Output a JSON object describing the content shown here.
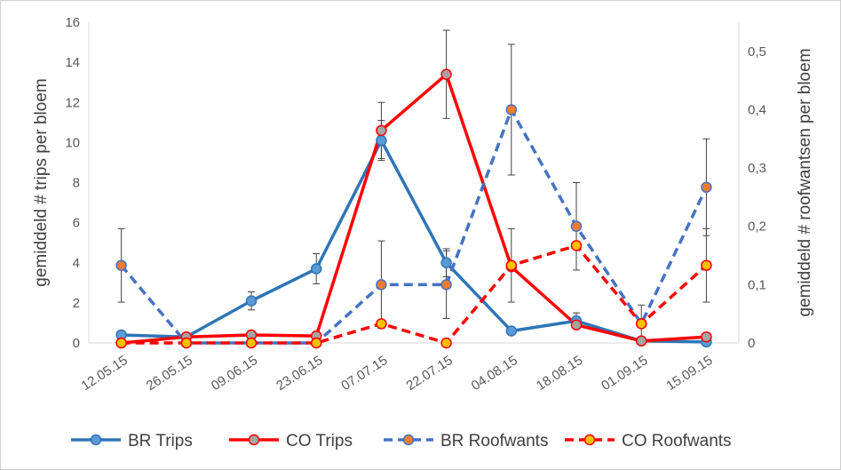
{
  "chart_data": {
    "type": "line",
    "title": "",
    "categories": [
      "12.05.15",
      "26.05.15",
      "09.06.15",
      "23.06.15",
      "07.07.15",
      "22.07.15",
      "04.08.15",
      "18.08.15",
      "01.09.15",
      "15.09.15"
    ],
    "ylabel_left": "gemiddeld # trips per bloem",
    "ylabel_right": "gemiddeld # roofwantsen per bloem",
    "ylim_left": [
      0,
      16
    ],
    "yticks_left": [
      "0",
      "2",
      "4",
      "6",
      "8",
      "10",
      "12",
      "14",
      "16"
    ],
    "ylim_right": [
      0,
      0.55
    ],
    "yticks_right": [
      "0",
      "0,1",
      "0,2",
      "0,3",
      "0,4",
      "0,5"
    ],
    "grid": false,
    "legend_position": "bottom",
    "series": [
      {
        "name": "BR Trips",
        "axis": "left",
        "dashed": false,
        "color": "#2E75B6",
        "marker_fill": "#5B9BD5",
        "values": [
          0.4,
          0.3,
          2.1,
          3.7,
          10.1,
          4.0,
          0.6,
          1.1,
          0.1,
          0.05
        ],
        "error": [
          null,
          null,
          0.45,
          0.75,
          1.0,
          0.7,
          null,
          0.4,
          null,
          null
        ]
      },
      {
        "name": "CO Trips",
        "axis": "left",
        "dashed": false,
        "color": "#FF0000",
        "marker_fill": "#A5A5A5",
        "values": [
          0.0,
          0.3,
          0.4,
          0.35,
          10.6,
          13.4,
          3.8,
          0.9,
          0.1,
          0.3
        ],
        "error": [
          null,
          null,
          null,
          null,
          1.4,
          2.2,
          null,
          null,
          null,
          null
        ]
      },
      {
        "name": "BR Roofwants",
        "axis": "right",
        "dashed": true,
        "color": "#4472C4",
        "marker_fill": "#ED7D31",
        "values": [
          0.133,
          0.0,
          0.0,
          0.0,
          0.1,
          0.1,
          0.4,
          0.2,
          0.033,
          0.267
        ],
        "error": [
          0.063,
          null,
          null,
          null,
          0.075,
          0.058,
          0.112,
          0.075,
          0.032,
          0.083
        ]
      },
      {
        "name": "CO Roofwants",
        "axis": "right",
        "dashed": true,
        "color": "#FF0000",
        "marker_fill": "#FFC000",
        "values": [
          0.0,
          0.0,
          0.0,
          0.0,
          0.033,
          0.0,
          0.133,
          0.167,
          0.033,
          0.133
        ],
        "error": [
          null,
          null,
          null,
          null,
          null,
          null,
          0.063,
          null,
          null,
          0.063
        ]
      }
    ]
  }
}
